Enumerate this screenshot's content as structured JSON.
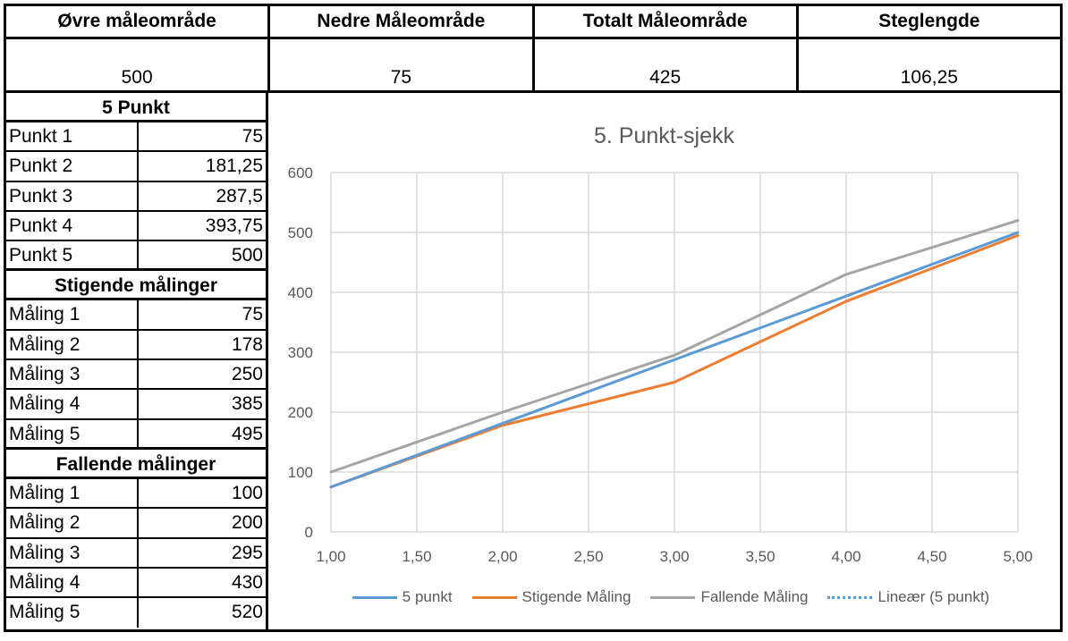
{
  "header": [
    {
      "title": "Øvre måleområde",
      "value": "500"
    },
    {
      "title": "Nedre Måleområde",
      "value": "75"
    },
    {
      "title": "Totalt Måleområde",
      "value": "425"
    },
    {
      "title": "Steglengde",
      "value": "106,25"
    }
  ],
  "sections": [
    {
      "title": "5 Punkt",
      "rows": [
        {
          "label": "Punkt 1",
          "value": "75"
        },
        {
          "label": "Punkt 2",
          "value": "181,25"
        },
        {
          "label": "Punkt 3",
          "value": "287,5"
        },
        {
          "label": "Punkt 4",
          "value": "393,75"
        },
        {
          "label": "Punkt 5",
          "value": "500"
        }
      ]
    },
    {
      "title": "Stigende  målinger",
      "rows": [
        {
          "label": "Måling 1",
          "value": "75"
        },
        {
          "label": "Måling 2",
          "value": "178"
        },
        {
          "label": "Måling 3",
          "value": "250"
        },
        {
          "label": "Måling 4",
          "value": "385"
        },
        {
          "label": "Måling 5",
          "value": "495"
        }
      ]
    },
    {
      "title": "Fallende  målinger",
      "rows": [
        {
          "label": "Måling 1",
          "value": "100"
        },
        {
          "label": "Måling 2",
          "value": "200"
        },
        {
          "label": "Måling 3",
          "value": "295"
        },
        {
          "label": "Måling 4",
          "value": "430"
        },
        {
          "label": "Måling 5",
          "value": "520"
        }
      ]
    }
  ],
  "chart_data": {
    "type": "line",
    "title": "5. Punkt-sjekk",
    "x": [
      1,
      2,
      3,
      4,
      5
    ],
    "xlim": [
      1,
      5
    ],
    "ylim": [
      0,
      600
    ],
    "xticks": [
      "1,00",
      "1,50",
      "2,00",
      "2,50",
      "3,00",
      "3,50",
      "4,00",
      "4,50",
      "5,00"
    ],
    "yticks": [
      "0",
      "100",
      "200",
      "300",
      "400",
      "500",
      "600"
    ],
    "grid": true,
    "legend_position": "bottom",
    "series": [
      {
        "name": "5 punkt",
        "values": [
          75,
          181.25,
          287.5,
          393.75,
          500
        ],
        "color": "#5B9BD5",
        "style": "solid"
      },
      {
        "name": "Stigende Måling",
        "values": [
          75,
          178,
          250,
          385,
          495
        ],
        "color": "#ED7D31",
        "style": "solid"
      },
      {
        "name": "Fallende Måling",
        "values": [
          100,
          200,
          295,
          430,
          520
        ],
        "color": "#A5A5A5",
        "style": "solid"
      },
      {
        "name": "Lineær (5 punkt)",
        "values": [
          75,
          181.25,
          287.5,
          393.75,
          500
        ],
        "color": "#5B9BD5",
        "style": "dotted"
      }
    ]
  }
}
